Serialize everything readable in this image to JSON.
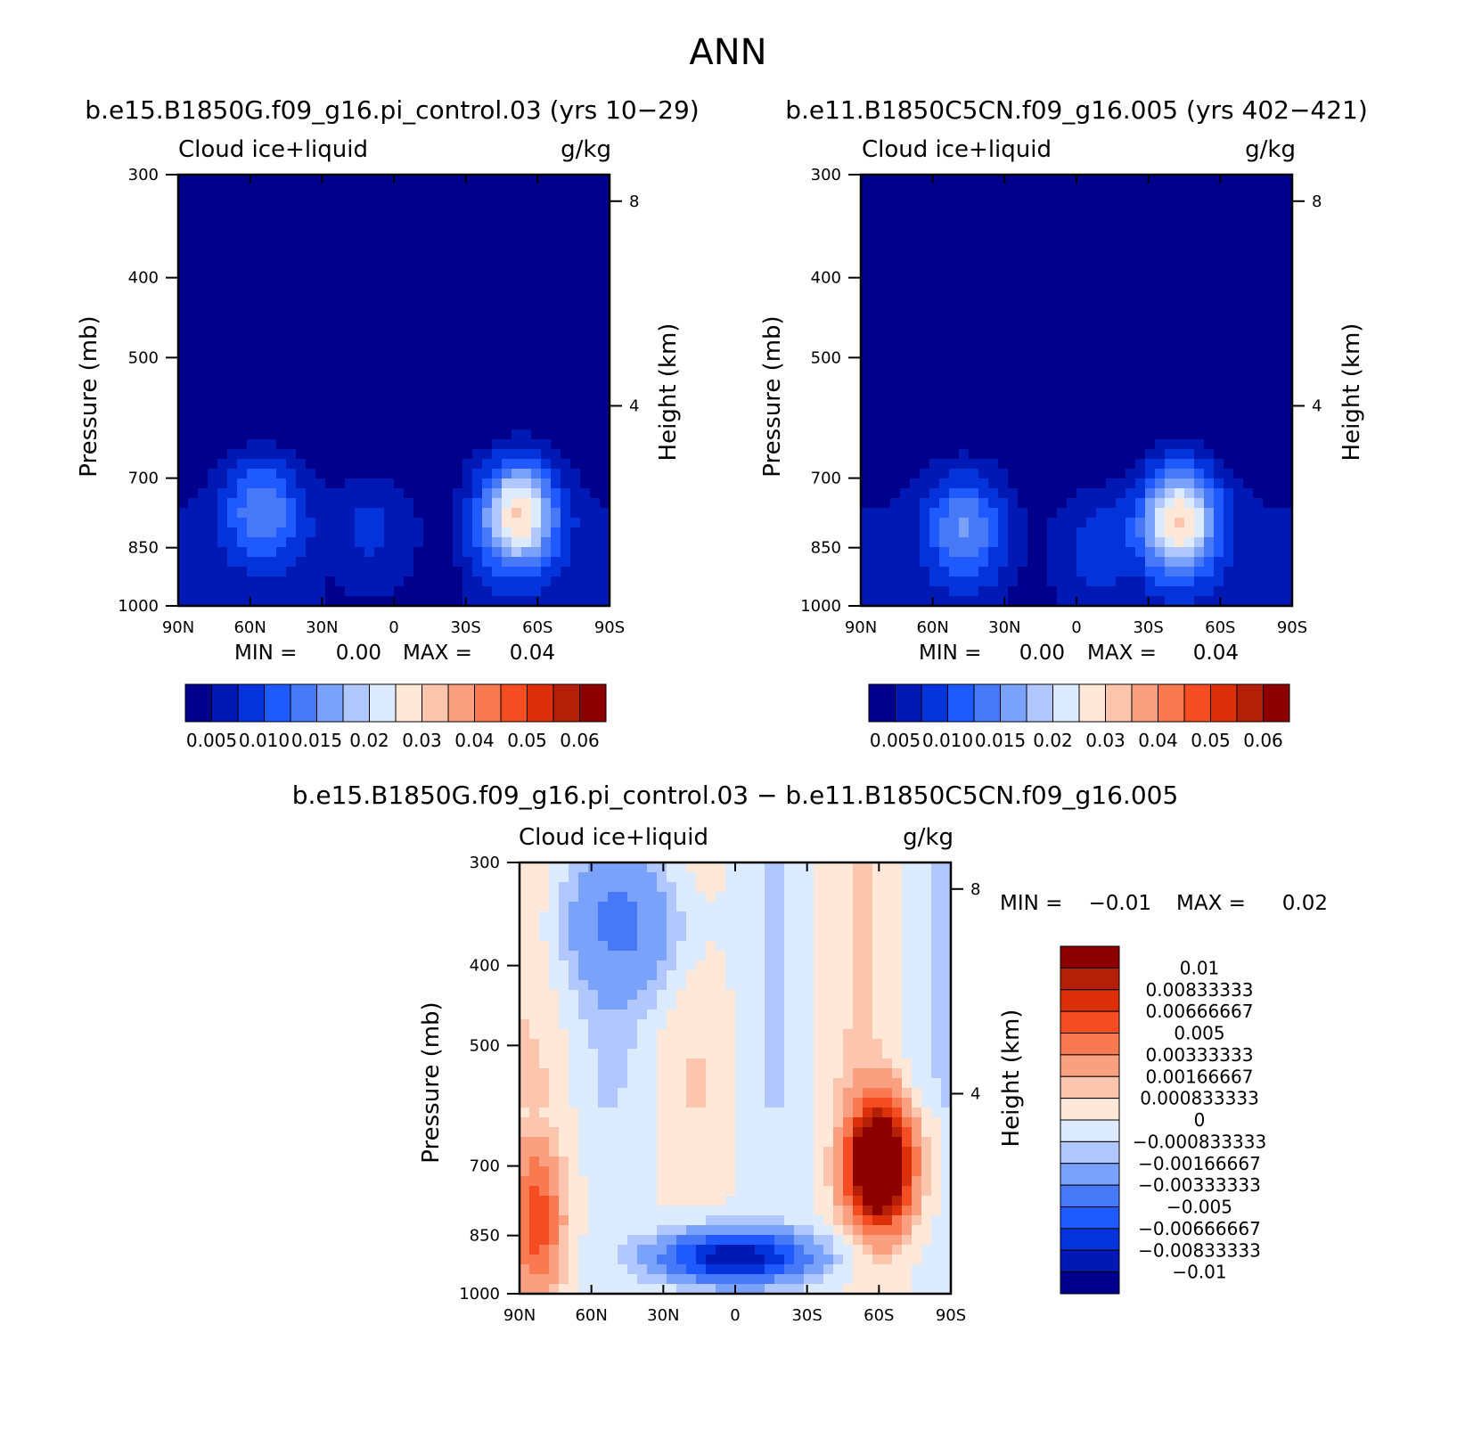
{
  "figure_title": "ANN",
  "diff_title": "b.e15.B1850G.f09_g16.pi_control.03 − b.e11.B1850C5CN.f09_g16.005",
  "chart_data": [
    {
      "type": "heatmap",
      "title": "b.e15.B1850G.f09_g16.pi_control.03 (yrs 10−29)",
      "variable": "Cloud ice+liquid",
      "units": "g/kg",
      "xlabel": "",
      "ylabel": "Pressure (mb)",
      "ylabel_right": "Height (km)",
      "x_ticks": [
        "90N",
        "60N",
        "30N",
        "0",
        "30S",
        "60S",
        "90S"
      ],
      "y_ticks": [
        "300",
        "400",
        "500",
        "700",
        "850",
        "1000"
      ],
      "y_right_ticks": [
        "8",
        "4"
      ],
      "xlim": [
        90,
        -90
      ],
      "ylim": [
        1000,
        300
      ],
      "min_label": "MIN =",
      "min_value": "0.00",
      "max_label": "MAX =",
      "max_value": "0.04",
      "colorbar_labels": [
        "0.005",
        "0.010",
        "0.015",
        "0.02",
        "0.03",
        "0.04",
        "0.05",
        "0.06"
      ],
      "features": [
        {
          "lat": 55,
          "p": 840,
          "value": 0.02
        },
        {
          "lat": -52,
          "p": 850,
          "value": 0.04
        },
        {
          "lat": 10,
          "p": 870,
          "value": 0.008
        }
      ]
    },
    {
      "type": "heatmap",
      "title": "b.e11.B1850C5CN.f09_g16.005 (yrs 402−421)",
      "variable": "Cloud ice+liquid",
      "units": "g/kg",
      "xlabel": "",
      "ylabel": "Pressure (mb)",
      "ylabel_right": "Height (km)",
      "x_ticks": [
        "90N",
        "60N",
        "30N",
        "0",
        "30S",
        "60S",
        "90S"
      ],
      "y_ticks": [
        "300",
        "400",
        "500",
        "700",
        "850",
        "1000"
      ],
      "y_right_ticks": [
        "8",
        "4"
      ],
      "xlim": [
        90,
        -90
      ],
      "ylim": [
        1000,
        300
      ],
      "min_label": "MIN =",
      "min_value": "0.00",
      "max_label": "MAX =",
      "max_value": "0.04",
      "colorbar_labels": [
        "0.005",
        "0.010",
        "0.015",
        "0.02",
        "0.03",
        "0.04",
        "0.05",
        "0.06"
      ],
      "features": [
        {
          "lat": 47,
          "p": 870,
          "value": 0.02
        },
        {
          "lat": -43,
          "p": 860,
          "value": 0.04
        },
        {
          "lat": -10,
          "p": 905,
          "value": 0.01
        }
      ]
    },
    {
      "type": "heatmap",
      "title": "",
      "variable": "Cloud ice+liquid",
      "units": "g/kg",
      "xlabel": "",
      "ylabel": "Pressure (mb)",
      "ylabel_right": "Height (km)",
      "x_ticks": [
        "90N",
        "60N",
        "30N",
        "0",
        "30S",
        "60S",
        "90S"
      ],
      "y_ticks": [
        "300",
        "400",
        "500",
        "700",
        "850",
        "1000"
      ],
      "y_right_ticks": [
        "8",
        "4"
      ],
      "xlim": [
        90,
        -90
      ],
      "ylim": [
        1000,
        300
      ],
      "min_label": "MIN =",
      "min_value": "−0.01",
      "max_label": "MAX =",
      "max_value": "0.02",
      "colorbar_labels": [
        "0.01",
        "0.00833333",
        "0.00666667",
        "0.005",
        "0.00333333",
        "0.00166667",
        "0.000833333",
        "0",
        "−0.000833333",
        "−0.00166667",
        "−0.00333333",
        "−0.005",
        "−0.00666667",
        "−0.00833333",
        "−0.01"
      ],
      "features": [
        {
          "lat": -60,
          "p": 790,
          "value": 0.02
        },
        {
          "lat": 83,
          "p": 880,
          "value": 0.006
        },
        {
          "lat": 0,
          "p": 940,
          "value": -0.01
        },
        {
          "lat": 45,
          "p": 400,
          "value": -0.003
        }
      ]
    }
  ],
  "colors": {
    "seq": [
      "#00008c",
      "#0018b4",
      "#0433dc",
      "#1e5aff",
      "#4678f7",
      "#7aa2fa",
      "#b0c8ff",
      "#dcebff",
      "#ffe8d8",
      "#fcc6ae",
      "#fa9f7f",
      "#f97a50",
      "#f54d22",
      "#db3009",
      "#b41f08",
      "#8c0000"
    ],
    "diff": [
      "#00008c",
      "#0018b4",
      "#0433dc",
      "#1e5aff",
      "#4678f7",
      "#7aa2fa",
      "#b0c8ff",
      "#dcebff",
      "#ffe8d8",
      "#fcc6ae",
      "#fa9f7f",
      "#f97a50",
      "#f54d22",
      "#db3009",
      "#b41f08",
      "#8c0000"
    ]
  }
}
